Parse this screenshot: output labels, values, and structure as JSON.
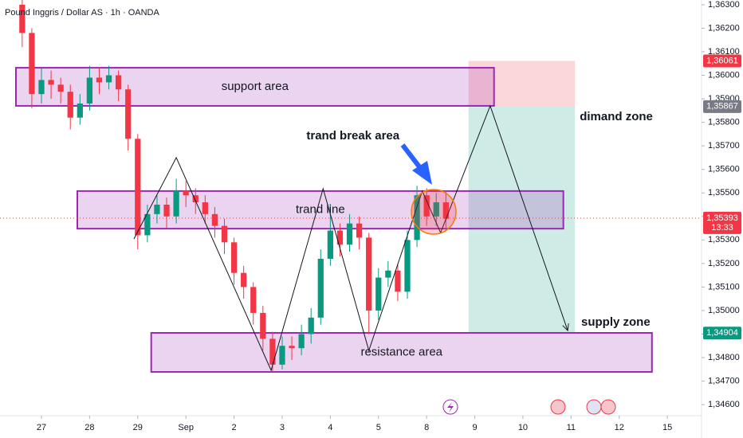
{
  "chart_data": {
    "type": "candlestick",
    "title": "Pound Inggris / Dollar AS · 1h · OANDA",
    "x": [
      -0.4,
      -0.2,
      0.0,
      0.2,
      0.4,
      0.6,
      0.8,
      1.0,
      1.2,
      1.4,
      1.6,
      1.8,
      2.0,
      2.2,
      2.4,
      2.6,
      2.8,
      3.0,
      3.2,
      3.4,
      3.6,
      3.8,
      4.0,
      4.2,
      4.4,
      4.6,
      4.8,
      5.0,
      5.2,
      5.4,
      5.6,
      5.8,
      6.0,
      6.2,
      6.4,
      6.6,
      6.8,
      7.0,
      7.2,
      7.4,
      7.6,
      7.8,
      8.0,
      8.2,
      8.4
    ],
    "open": [
      1.363,
      1.3618,
      1.3592,
      1.3598,
      1.3596,
      1.3593,
      1.3582,
      1.3588,
      1.3599,
      1.3597,
      1.36,
      1.3594,
      1.3573,
      1.3532,
      1.3541,
      1.3545,
      1.354,
      1.3551,
      1.3549,
      1.3546,
      1.3541,
      1.3536,
      1.3529,
      1.3516,
      1.351,
      1.3499,
      1.3488,
      1.3477,
      1.3485,
      1.3484,
      1.349,
      1.3497,
      1.3522,
      1.3534,
      1.3528,
      1.3537,
      1.3531,
      1.35,
      1.3514,
      1.3517,
      1.3508,
      1.353,
      1.3549,
      1.354,
      1.3546
    ],
    "high": [
      1.3633,
      1.362,
      1.3603,
      1.3602,
      1.3599,
      1.3596,
      1.3592,
      1.3604,
      1.3603,
      1.3604,
      1.3602,
      1.3596,
      1.3575,
      1.3545,
      1.3549,
      1.3548,
      1.3556,
      1.3555,
      1.3552,
      1.3549,
      1.3544,
      1.3539,
      1.3531,
      1.3519,
      1.3512,
      1.3502,
      1.3491,
      1.3489,
      1.3489,
      1.3494,
      1.3501,
      1.3526,
      1.3545,
      1.3537,
      1.3541,
      1.354,
      1.3533,
      1.3518,
      1.3521,
      1.352,
      1.3534,
      1.3553,
      1.3552,
      1.355,
      1.3551
    ],
    "low": [
      1.3612,
      1.3586,
      1.3588,
      1.359,
      1.3588,
      1.3577,
      1.3579,
      1.3585,
      1.3592,
      1.3594,
      1.3589,
      1.3568,
      1.3526,
      1.3529,
      1.3537,
      1.3535,
      1.3537,
      1.3544,
      1.3541,
      1.3537,
      1.3531,
      1.3524,
      1.3511,
      1.3505,
      1.3494,
      1.3483,
      1.3474,
      1.3475,
      1.3479,
      1.3481,
      1.3486,
      1.3494,
      1.3519,
      1.3523,
      1.3525,
      1.3526,
      1.349,
      1.3496,
      1.351,
      1.3504,
      1.3505,
      1.3527,
      1.3536,
      1.3536,
      1.3534
    ],
    "close": [
      1.3618,
      1.3592,
      1.3598,
      1.3596,
      1.3593,
      1.3582,
      1.3588,
      1.3599,
      1.3597,
      1.36,
      1.3594,
      1.3573,
      1.3532,
      1.3541,
      1.3545,
      1.354,
      1.3551,
      1.3549,
      1.3546,
      1.3541,
      1.3536,
      1.3529,
      1.3516,
      1.351,
      1.3499,
      1.3488,
      1.3477,
      1.3485,
      1.3484,
      1.349,
      1.3497,
      1.3522,
      1.3534,
      1.3528,
      1.3537,
      1.3531,
      1.35,
      1.3514,
      1.3517,
      1.3508,
      1.353,
      1.3549,
      1.354,
      1.3546,
      1.3539
    ],
    "up_color": "#089981",
    "down_color": "#f23645",
    "xlim": [
      -0.861,
      13.71
    ],
    "xticks": [
      {
        "value": 0,
        "label": "27"
      },
      {
        "value": 1,
        "label": "28"
      },
      {
        "value": 2,
        "label": "29"
      },
      {
        "value": 3,
        "label": "Sep"
      },
      {
        "value": 4,
        "label": "2"
      },
      {
        "value": 5,
        "label": "3"
      },
      {
        "value": 6,
        "label": "4"
      },
      {
        "value": 7,
        "label": "5"
      },
      {
        "value": 8,
        "label": "8"
      },
      {
        "value": 9,
        "label": "9"
      },
      {
        "value": 10,
        "label": "10"
      },
      {
        "value": 11,
        "label": "11"
      },
      {
        "value": 12,
        "label": "12"
      },
      {
        "value": 13,
        "label": "15"
      }
    ],
    "ylim": [
      1.34553,
      1.3632
    ],
    "yticks": [
      {
        "value": 1.363,
        "label": "1,36300"
      },
      {
        "value": 1.362,
        "label": "1,36200"
      },
      {
        "value": 1.361,
        "label": "1,36100"
      },
      {
        "value": 1.36,
        "label": "1,36000"
      },
      {
        "value": 1.359,
        "label": "1,35900"
      },
      {
        "value": 1.358,
        "label": "1,35800"
      },
      {
        "value": 1.357,
        "label": "1,35700"
      },
      {
        "value": 1.356,
        "label": "1,35600"
      },
      {
        "value": 1.355,
        "label": "1,35500"
      },
      {
        "value": 1.354,
        "label": "1,35400"
      },
      {
        "value": 1.353,
        "label": "1,35300"
      },
      {
        "value": 1.352,
        "label": "1,35200"
      },
      {
        "value": 1.351,
        "label": "1,35100"
      },
      {
        "value": 1.35,
        "label": "1,35000"
      },
      {
        "value": 1.349,
        "label": "1,34900"
      },
      {
        "value": 1.348,
        "label": "1,34800"
      },
      {
        "value": 1.347,
        "label": "1,34700"
      },
      {
        "value": 1.346,
        "label": "1,34600"
      }
    ],
    "zones": [
      {
        "label": "support area",
        "x": [
          -0.53,
          9.4
        ],
        "y": [
          1.3587,
          1.36032
        ],
        "color": "#9c27b0"
      },
      {
        "label": "trand line",
        "x": [
          0.745,
          10.84
        ],
        "y": [
          1.35348,
          1.35508
        ],
        "color": "#9c27b0"
      },
      {
        "label": "resistance area",
        "x": [
          2.28,
          12.68
        ],
        "y": [
          1.34739,
          1.34905
        ],
        "color": "#9c27b0"
      }
    ],
    "position": {
      "x": [
        8.87,
        11.08
      ],
      "stop": 1.36061,
      "entry": 1.35867,
      "target": 1.34904,
      "stop_color": "#f23645",
      "target_color": "#089981"
    },
    "pattern_line": {
      "x": [
        1.92,
        2.8,
        4.77,
        5.85,
        6.8,
        7.91,
        8.29,
        9.32,
        10.93
      ],
      "y": [
        1.35304,
        1.3565,
        1.34746,
        1.35518,
        1.3483,
        1.35508,
        1.35331,
        1.3587,
        1.34915
      ],
      "color": "#131722"
    },
    "annotations": [
      {
        "text": "trand break area",
        "x": 6.47,
        "y": 1.35741
      },
      {
        "text": "dimand zone",
        "x": 11.18,
        "y": 1.35823
      },
      {
        "text": "supply zone",
        "x": 11.21,
        "y": 1.34949
      }
    ],
    "price_labels": [
      {
        "value": 1.36061,
        "label": "1,36061",
        "color": "#f23645"
      },
      {
        "value": 1.35867,
        "label": "1,35867",
        "color": "#787b86"
      },
      {
        "value": 1.35393,
        "label": "1,35393",
        "sublabel": "13:33",
        "color": "#f23645"
      },
      {
        "value": 1.34904,
        "label": "1,34904",
        "color": "#089981"
      }
    ]
  }
}
